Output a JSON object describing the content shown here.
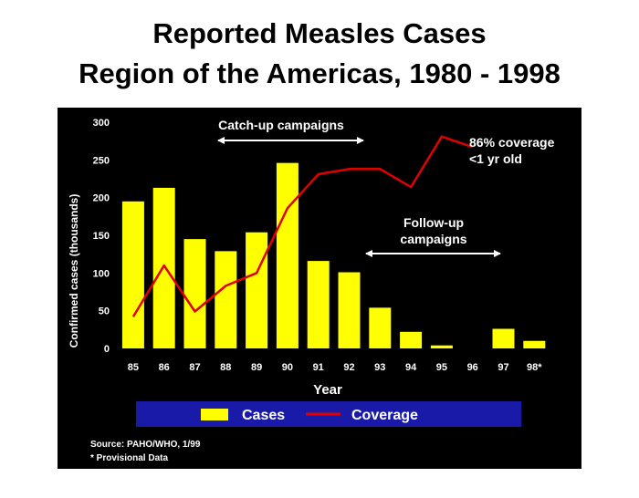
{
  "title_line1": "Reported Measles Cases",
  "title_line2": "Region of the Americas, 1980 - 1998",
  "chart_data": {
    "type": "bar",
    "categories": [
      "85",
      "86",
      "87",
      "88",
      "89",
      "90",
      "91",
      "92",
      "93",
      "94",
      "95",
      "96",
      "97",
      "98*"
    ],
    "series": [
      {
        "name": "Cases",
        "type": "bar",
        "color": "#ffff00",
        "values": [
          195,
          213,
          145,
          129,
          154,
          246,
          116,
          101,
          54,
          22,
          4,
          0,
          26,
          10
        ]
      },
      {
        "name": "Coverage",
        "type": "line",
        "color": "#e00000",
        "values": [
          42,
          110,
          49,
          83,
          100,
          186,
          231,
          238,
          238,
          214,
          281,
          267,
          null,
          null
        ]
      }
    ],
    "xlabel": "Year",
    "ylabel": "Confirmed cases (thousands)",
    "ylim": [
      0,
      300
    ],
    "yticks": [
      0,
      50,
      100,
      150,
      200,
      250,
      300
    ],
    "grid": false,
    "legend_position": "bottom",
    "annotations": {
      "catchup": "Catch-up campaigns",
      "coverage_line1": "86% coverage",
      "coverage_line2": "<1 yr old",
      "followup_line1": "Follow-up",
      "followup_line2": "campaigns"
    },
    "source": "Source: PAHO/WHO, 1/99",
    "footnote": "* Provisional Data"
  },
  "colors": {
    "background": "#000000",
    "bars": "#ffff00",
    "line": "#e00000",
    "legend_bg": "#1a1aa8",
    "text": "#ffffff"
  }
}
